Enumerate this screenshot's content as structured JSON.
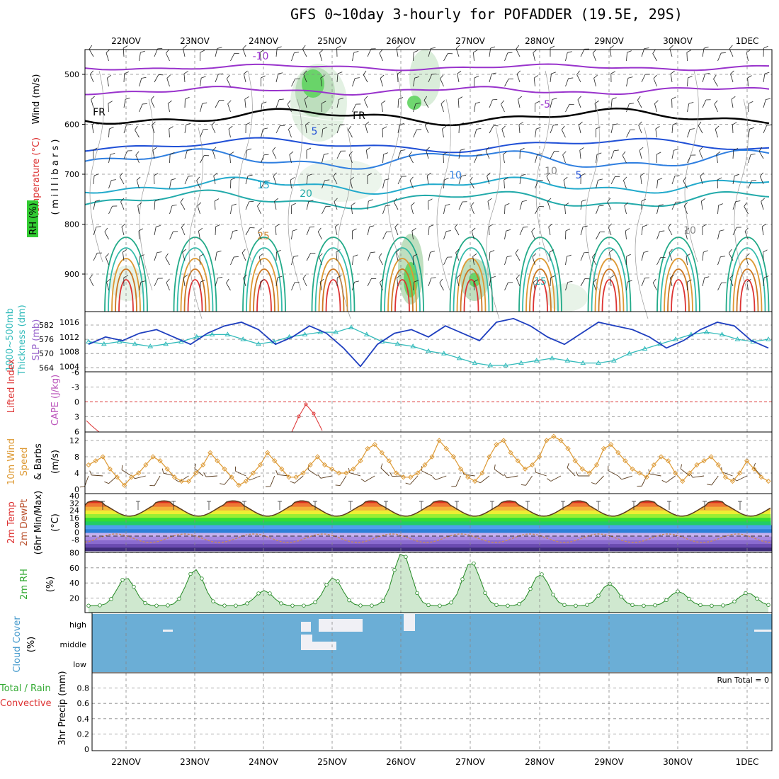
{
  "title": "GFS 0~10day 3-hourly for POFADDER (19.5E, 29S)",
  "dates": [
    "22NOV",
    "23NOV",
    "24NOV",
    "25NOV",
    "26NOV",
    "27NOV",
    "28NOV",
    "29NOV",
    "30NOV",
    "1DEC"
  ],
  "colors": {
    "slp": "#1f3fbf",
    "thick": "#33bbbb",
    "li": "#dd3333",
    "wind": "#dd9933",
    "barb": "#5a3c1e",
    "rh": "#33cc33",
    "cloud": "#6baed6",
    "grid": "#888888"
  },
  "panels": {
    "upper": {
      "labels": {
        "wind": "Wind (m/s)",
        "temp": "Temperature (°C)",
        "rh": "RH (%)",
        "mb": "( m i l l i b a r s )"
      },
      "y_ticks": [
        "500",
        "600",
        "700",
        "800",
        "900"
      ],
      "contour_labels": [
        "-10",
        "FR",
        "FR",
        "5",
        "-5",
        "15",
        "20",
        "25",
        "10",
        "5",
        "10",
        "10",
        "15"
      ]
    },
    "slp": {
      "labels": {
        "thick": "1000~500mb",
        "thick2": "Thickness (dm)",
        "slp": "SLP (mb)"
      },
      "ticks_left": [
        "582",
        "576",
        "570",
        "564"
      ],
      "ticks_right": [
        "1016",
        "1012",
        "1008",
        "1004"
      ]
    },
    "li": {
      "labels": {
        "li": "Lifted Index",
        "cape": "CAPE (J/kg)"
      },
      "ticks": [
        "-6",
        "-3",
        "0",
        "3",
        "6"
      ]
    },
    "wind10": {
      "labels": {
        "a": "10m Wind",
        "b": "Speed",
        "c": "& Barbs",
        "d": "(m/s)"
      },
      "ticks": [
        "12",
        "8",
        "4",
        "0"
      ]
    },
    "temp": {
      "labels": {
        "a": "2m Temp",
        "b": "2m DewPt",
        "c": "(6hr Min/Max)",
        "d": "(°C)"
      },
      "ticks": [
        "40",
        "32",
        "24",
        "16",
        "8",
        "0",
        "-8"
      ]
    },
    "rh2m": {
      "labels": {
        "a": "2m RH",
        "b": "(%)"
      },
      "ticks": [
        "80",
        "60",
        "40",
        "20"
      ]
    },
    "cloud": {
      "labels": {
        "a": "Cloud Cover",
        "b": "(%)"
      },
      "levels": [
        "high",
        "middle",
        "low"
      ]
    },
    "precip": {
      "labels": {
        "a": "Total / Rain",
        "b": "Convective",
        "c": "3hr Precip (mm)"
      },
      "ticks": [
        "0.8",
        "0.6",
        "0.4",
        "0.2",
        "0"
      ],
      "run_total": "Run Total = 0"
    }
  },
  "chart_data": [
    {
      "type": "line",
      "title": "",
      "xlabel": "",
      "ylabel": "SLP (mb)",
      "x": [
        "22NOV",
        "23NOV",
        "24NOV",
        "25NOV",
        "26NOV",
        "27NOV",
        "28NOV",
        "29NOV",
        "30NOV",
        "1DEC"
      ],
      "series": [
        {
          "name": "SLP (mb)",
          "values": [
            1010,
            1012,
            1015,
            1004,
            1013,
            1011,
            1016,
            1015,
            1016,
            1009
          ]
        },
        {
          "name": "1000~500mb Thickness (dm)",
          "values": [
            575,
            574,
            579,
            581,
            574,
            565,
            566,
            574,
            579,
            576
          ]
        }
      ]
    },
    {
      "type": "line",
      "ylabel": "2m RH (%)",
      "x": [
        "22NOV",
        "23NOV",
        "24NOV",
        "25NOV",
        "26NOV",
        "27NOV",
        "28NOV",
        "29NOV",
        "30NOV",
        "1DEC"
      ],
      "series": [
        {
          "name": "2m RH",
          "values": [
            47,
            58,
            30,
            47,
            80,
            68,
            52,
            39,
            29,
            27
          ]
        }
      ],
      "ylim": [
        0,
        80
      ]
    },
    {
      "type": "bar",
      "ylabel": "3hr Precip (mm)",
      "categories": [
        "22NOV",
        "23NOV",
        "24NOV",
        "25NOV",
        "26NOV",
        "27NOV",
        "28NOV",
        "29NOV",
        "30NOV",
        "1DEC"
      ],
      "values": [
        0,
        0,
        0,
        0,
        0,
        0,
        0,
        0,
        0,
        0
      ],
      "ylim": [
        0,
        0.9
      ]
    }
  ]
}
